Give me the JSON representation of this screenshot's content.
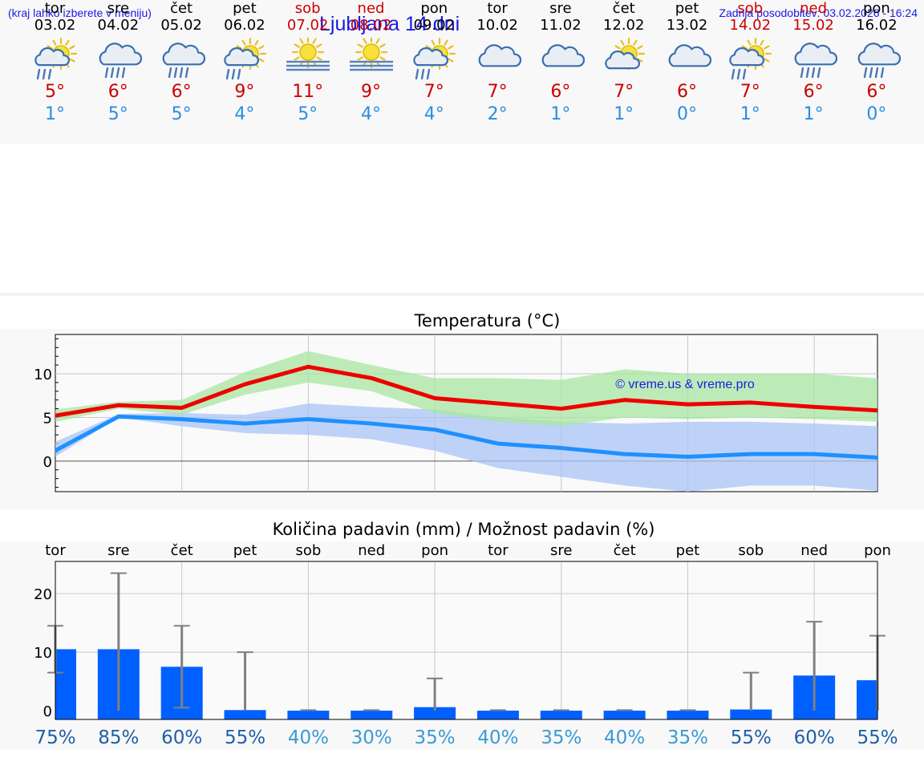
{
  "header": {
    "hint": "(kraj lahko izberete v meniju)",
    "title": "Ljubljana 14 dni",
    "updated": "Zadnja posodobitev: 03.02.2026 - 16:24"
  },
  "colors": {
    "max_line": "#ee0000",
    "min_line": "#1e90ff",
    "max_band": "#a8e6a0",
    "min_band": "#a9c4f5",
    "bar": "#0060ff",
    "whisker": "#808080",
    "weekend": "#cc0000",
    "link": "#1a1ae6"
  },
  "days": [
    {
      "name": "tor",
      "date": "03.02",
      "weekend": false,
      "icon": "partly-sunny-rain-icon",
      "tmax": "5°",
      "tmin": "1°"
    },
    {
      "name": "sre",
      "date": "04.02",
      "weekend": false,
      "icon": "cloud-rain-icon",
      "tmax": "6°",
      "tmin": "5°"
    },
    {
      "name": "čet",
      "date": "05.02",
      "weekend": false,
      "icon": "cloud-rain-icon",
      "tmax": "6°",
      "tmin": "5°"
    },
    {
      "name": "pet",
      "date": "06.02",
      "weekend": false,
      "icon": "partly-sunny-rain-icon",
      "tmax": "9°",
      "tmin": "4°"
    },
    {
      "name": "sob",
      "date": "07.02",
      "weekend": true,
      "icon": "sun-fog-icon",
      "tmax": "11°",
      "tmin": "5°"
    },
    {
      "name": "ned",
      "date": "08.02",
      "weekend": true,
      "icon": "sun-fog-icon",
      "tmax": "9°",
      "tmin": "4°"
    },
    {
      "name": "pon",
      "date": "09.02",
      "weekend": false,
      "icon": "partly-sunny-rain-icon",
      "tmax": "7°",
      "tmin": "4°"
    },
    {
      "name": "tor",
      "date": "10.02",
      "weekend": false,
      "icon": "cloudy-icon",
      "tmax": "7°",
      "tmin": "2°"
    },
    {
      "name": "sre",
      "date": "11.02",
      "weekend": false,
      "icon": "cloudy-icon",
      "tmax": "6°",
      "tmin": "1°"
    },
    {
      "name": "čet",
      "date": "12.02",
      "weekend": false,
      "icon": "partly-sunny-icon",
      "tmax": "7°",
      "tmin": "1°"
    },
    {
      "name": "pet",
      "date": "13.02",
      "weekend": false,
      "icon": "cloudy-icon",
      "tmax": "6°",
      "tmin": "0°"
    },
    {
      "name": "sob",
      "date": "14.02",
      "weekend": true,
      "icon": "partly-sunny-rain-icon",
      "tmax": "7°",
      "tmin": "1°"
    },
    {
      "name": "ned",
      "date": "15.02",
      "weekend": true,
      "icon": "cloud-rain-icon",
      "tmax": "6°",
      "tmin": "1°"
    },
    {
      "name": "pon",
      "date": "16.02",
      "weekend": false,
      "icon": "cloud-rain-icon",
      "tmax": "6°",
      "tmin": "0°"
    }
  ],
  "chart_data": [
    {
      "type": "line",
      "title": "Temperatura (°C)",
      "watermark": "© vreme.us & vreme.pro",
      "x": [
        0,
        1,
        2,
        3,
        4,
        5,
        6,
        7,
        8,
        9,
        10,
        11,
        12,
        13
      ],
      "ylim": [
        -3.5,
        14.5
      ],
      "yticks": [
        0,
        5,
        10
      ],
      "grid": true,
      "series": [
        {
          "name": "max",
          "values": [
            5.2,
            6.4,
            6.1,
            8.8,
            10.8,
            9.5,
            7.2,
            6.6,
            6.0,
            7.0,
            6.5,
            6.7,
            6.2,
            5.8
          ]
        },
        {
          "name": "min",
          "values": [
            1.2,
            5.1,
            4.8,
            4.3,
            4.8,
            4.3,
            3.6,
            2.0,
            1.5,
            0.8,
            0.5,
            0.8,
            0.8,
            0.4
          ]
        },
        {
          "name": "max_range_low",
          "values": [
            4.5,
            6.0,
            5.3,
            7.6,
            9.0,
            8.0,
            5.5,
            4.5,
            4.0,
            5.0,
            4.8,
            5.0,
            4.8,
            4.5
          ]
        },
        {
          "name": "max_range_high",
          "values": [
            5.9,
            6.8,
            7.0,
            10.2,
            12.6,
            11.0,
            9.5,
            9.5,
            9.3,
            10.5,
            10.0,
            10.0,
            10.0,
            9.5
          ]
        },
        {
          "name": "min_range_low",
          "values": [
            0.5,
            5.0,
            4.0,
            3.2,
            3.0,
            2.5,
            1.2,
            -0.8,
            -1.8,
            -2.8,
            -3.5,
            -2.8,
            -2.8,
            -3.4
          ]
        },
        {
          "name": "min_range_high",
          "values": [
            2.2,
            5.4,
            5.5,
            5.3,
            6.6,
            6.2,
            5.9,
            5.0,
            4.5,
            4.3,
            4.5,
            4.5,
            4.3,
            4.0
          ]
        }
      ]
    },
    {
      "type": "bar",
      "title": "Količina padavin (mm) / Možnost padavin (%)",
      "categories": [
        "tor",
        "sre",
        "čet",
        "pet",
        "sob",
        "ned",
        "pon",
        "tor",
        "sre",
        "čet",
        "pet",
        "sob",
        "ned",
        "pon"
      ],
      "values": [
        10.5,
        10.5,
        7.5,
        0.1,
        0,
        0,
        0.6,
        0,
        0,
        0,
        0,
        0.2,
        6.0,
        5.2
      ],
      "range_low": [
        6.5,
        0,
        0.5,
        0,
        0,
        0,
        0,
        0,
        0,
        0,
        0,
        0,
        0,
        0
      ],
      "range_high": [
        14.5,
        23.5,
        14.5,
        10.0,
        0.1,
        0.1,
        5.5,
        0.1,
        0.1,
        0.1,
        0.1,
        6.5,
        15.2,
        12.8
      ],
      "probability": [
        "75%",
        "85%",
        "60%",
        "55%",
        "40%",
        "30%",
        "35%",
        "40%",
        "35%",
        "40%",
        "35%",
        "55%",
        "60%",
        "55%"
      ],
      "probability_values": [
        75,
        85,
        60,
        55,
        40,
        30,
        35,
        40,
        35,
        40,
        35,
        55,
        60,
        55
      ],
      "ylim": [
        -1.5,
        25.5
      ],
      "yticks": [
        0,
        10,
        20
      ],
      "grid": true
    }
  ]
}
